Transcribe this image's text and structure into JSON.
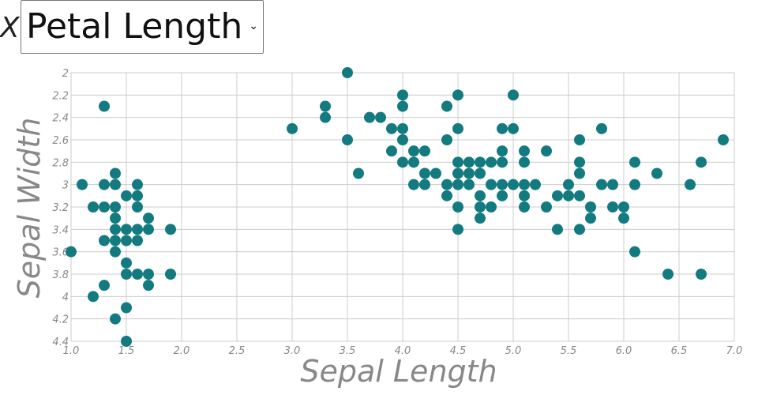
{
  "header": {
    "x_prefix": "X",
    "x_select_value": "Petal Length"
  },
  "colors": {
    "point": "#137b80",
    "grid": "#cccccc",
    "axis_text": "#888888"
  },
  "chart_data": {
    "type": "scatter",
    "xlabel": "Sepal Length",
    "ylabel": "Sepal Width",
    "xlim": [
      1.0,
      7.0
    ],
    "ylim": [
      2.0,
      4.4
    ],
    "y_inverted": true,
    "xticks": [
      "1.0",
      "1.5",
      "2.0",
      "2.5",
      "3.0",
      "3.5",
      "4.0",
      "4.5",
      "5.0",
      "5.5",
      "6.0",
      "6.5",
      "7.0"
    ],
    "yticks": [
      "2",
      "2.2",
      "2.4",
      "2.6",
      "2.8",
      "3",
      "3.2",
      "3.4",
      "3.6",
      "3.8",
      "4",
      "4.2",
      "4.4"
    ],
    "grid": true,
    "points": [
      [
        1.1,
        3.0
      ],
      [
        1.0,
        3.6
      ],
      [
        1.2,
        3.2
      ],
      [
        1.2,
        4.0
      ],
      [
        1.3,
        3.0
      ],
      [
        1.3,
        2.3
      ],
      [
        1.3,
        3.2
      ],
      [
        1.3,
        3.5
      ],
      [
        1.3,
        3.9
      ],
      [
        1.4,
        2.9
      ],
      [
        1.4,
        3.0
      ],
      [
        1.4,
        3.2
      ],
      [
        1.4,
        3.3
      ],
      [
        1.4,
        3.4
      ],
      [
        1.4,
        3.5
      ],
      [
        1.4,
        3.6
      ],
      [
        1.4,
        4.2
      ],
      [
        1.5,
        3.1
      ],
      [
        1.5,
        3.4
      ],
      [
        1.5,
        3.5
      ],
      [
        1.5,
        3.7
      ],
      [
        1.5,
        3.8
      ],
      [
        1.5,
        4.1
      ],
      [
        1.5,
        4.4
      ],
      [
        1.6,
        3.0
      ],
      [
        1.6,
        3.1
      ],
      [
        1.6,
        3.2
      ],
      [
        1.6,
        3.4
      ],
      [
        1.6,
        3.5
      ],
      [
        1.6,
        3.8
      ],
      [
        1.7,
        3.3
      ],
      [
        1.7,
        3.4
      ],
      [
        1.7,
        3.8
      ],
      [
        1.7,
        3.9
      ],
      [
        1.9,
        3.4
      ],
      [
        1.9,
        3.8
      ],
      [
        3.0,
        2.5
      ],
      [
        3.3,
        2.3
      ],
      [
        3.3,
        2.4
      ],
      [
        3.5,
        2.0
      ],
      [
        3.5,
        2.6
      ],
      [
        3.6,
        2.9
      ],
      [
        3.7,
        2.4
      ],
      [
        3.8,
        2.4
      ],
      [
        3.9,
        2.5
      ],
      [
        3.9,
        2.7
      ],
      [
        4.0,
        2.2
      ],
      [
        4.0,
        2.3
      ],
      [
        4.0,
        2.5
      ],
      [
        4.0,
        2.6
      ],
      [
        4.0,
        2.8
      ],
      [
        4.1,
        2.7
      ],
      [
        4.1,
        2.8
      ],
      [
        4.1,
        3.0
      ],
      [
        4.2,
        2.7
      ],
      [
        4.2,
        2.9
      ],
      [
        4.2,
        3.0
      ],
      [
        4.3,
        2.9
      ],
      [
        4.4,
        2.3
      ],
      [
        4.4,
        2.6
      ],
      [
        4.4,
        3.0
      ],
      [
        4.4,
        3.1
      ],
      [
        4.5,
        2.2
      ],
      [
        4.5,
        2.5
      ],
      [
        4.5,
        2.8
      ],
      [
        4.5,
        2.9
      ],
      [
        4.5,
        3.0
      ],
      [
        4.5,
        3.2
      ],
      [
        4.5,
        3.4
      ],
      [
        4.6,
        2.8
      ],
      [
        4.6,
        2.9
      ],
      [
        4.6,
        3.0
      ],
      [
        4.7,
        2.8
      ],
      [
        4.7,
        2.9
      ],
      [
        4.7,
        3.1
      ],
      [
        4.7,
        3.2
      ],
      [
        4.7,
        3.3
      ],
      [
        4.8,
        2.8
      ],
      [
        4.8,
        3.0
      ],
      [
        4.8,
        3.2
      ],
      [
        4.9,
        2.5
      ],
      [
        4.9,
        2.7
      ],
      [
        4.9,
        2.8
      ],
      [
        4.9,
        3.0
      ],
      [
        4.9,
        3.1
      ],
      [
        5.0,
        2.2
      ],
      [
        5.0,
        2.5
      ],
      [
        5.0,
        3.0
      ],
      [
        5.1,
        2.7
      ],
      [
        5.1,
        2.8
      ],
      [
        5.1,
        3.0
      ],
      [
        5.1,
        3.1
      ],
      [
        5.1,
        3.2
      ],
      [
        5.2,
        3.0
      ],
      [
        5.3,
        2.7
      ],
      [
        5.3,
        3.2
      ],
      [
        5.4,
        3.1
      ],
      [
        5.4,
        3.4
      ],
      [
        5.5,
        3.0
      ],
      [
        5.5,
        3.1
      ],
      [
        5.6,
        2.6
      ],
      [
        5.6,
        2.8
      ],
      [
        5.6,
        2.9
      ],
      [
        5.6,
        3.1
      ],
      [
        5.6,
        3.4
      ],
      [
        5.7,
        3.2
      ],
      [
        5.7,
        3.3
      ],
      [
        5.8,
        2.5
      ],
      [
        5.8,
        3.0
      ],
      [
        5.9,
        3.0
      ],
      [
        5.9,
        3.2
      ],
      [
        6.0,
        3.2
      ],
      [
        6.0,
        3.3
      ],
      [
        6.1,
        2.8
      ],
      [
        6.1,
        3.0
      ],
      [
        6.1,
        3.6
      ],
      [
        6.3,
        2.9
      ],
      [
        6.4,
        3.8
      ],
      [
        6.6,
        3.0
      ],
      [
        6.7,
        2.8
      ],
      [
        6.7,
        3.8
      ],
      [
        6.9,
        2.6
      ]
    ]
  }
}
